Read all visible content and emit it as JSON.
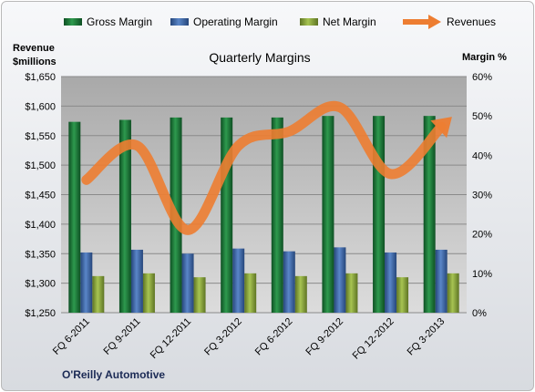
{
  "chart_data": {
    "type": "bar",
    "title": "Quarterly Margins",
    "source": "O'Reilly Automotive",
    "y_left_label_line1": "Revenue",
    "y_left_label_line2": "$millions",
    "y_right_label": "Margin %",
    "y_left_range": [
      1250,
      1650
    ],
    "y_left_ticks": [
      "$1,250",
      "$1,300",
      "$1,350",
      "$1,400",
      "$1,450",
      "$1,500",
      "$1,550",
      "$1,600",
      "$1,650"
    ],
    "y_right_range": [
      0,
      60
    ],
    "y_right_ticks": [
      "0%",
      "10%",
      "20%",
      "30%",
      "40%",
      "50%",
      "60%"
    ],
    "grid": true,
    "legend_position": "top",
    "categories": [
      "FQ 6-2011",
      "FQ 9-2011",
      "FQ 12-2011",
      "FQ 3-2012",
      "FQ 6-2012",
      "FQ 9-2012",
      "FQ 12-2012",
      "FQ 3-2013"
    ],
    "series": [
      {
        "name": "Gross Margin",
        "type": "bar",
        "axis": "right",
        "color": "#1f7a3a",
        "values": [
          48.5,
          49.0,
          49.6,
          49.6,
          49.6,
          50.0,
          50.0,
          50.0
        ]
      },
      {
        "name": "Operating Margin",
        "type": "bar",
        "axis": "right",
        "color": "#3f6db3",
        "values": [
          15.3,
          16.0,
          15.0,
          16.3,
          15.6,
          16.6,
          15.3,
          16.0
        ]
      },
      {
        "name": "Net Margin",
        "type": "bar",
        "axis": "right",
        "color": "#8fae3e",
        "values": [
          9.3,
          10.0,
          9.0,
          10.0,
          9.3,
          10.0,
          9.0,
          10.0
        ]
      },
      {
        "name": "Revenues",
        "type": "line",
        "axis": "left",
        "color": "#ed7d31",
        "values": [
          1475,
          1533,
          1390,
          1533,
          1557,
          1598,
          1485,
          1565
        ]
      }
    ]
  }
}
